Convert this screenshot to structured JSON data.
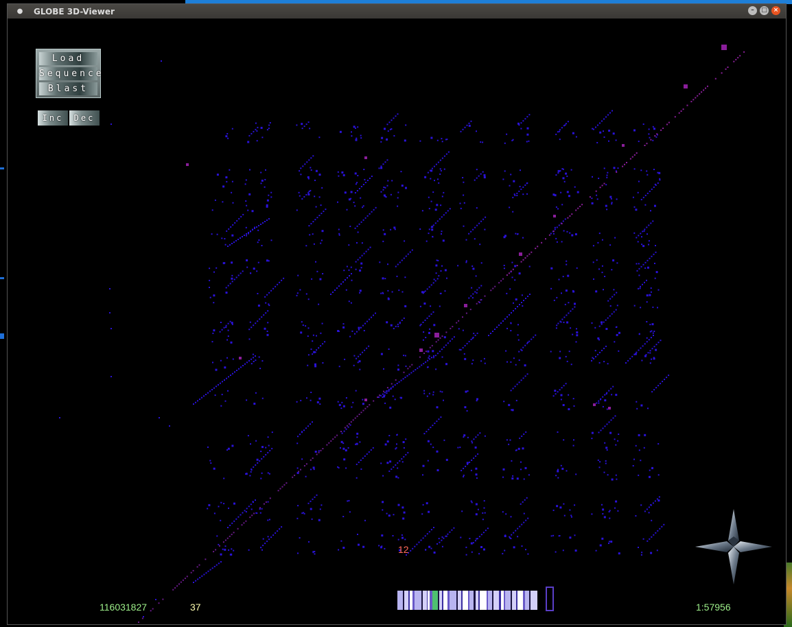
{
  "window": {
    "title": "GLOBE 3D-Viewer"
  },
  "menu": {
    "load_label": "Load",
    "sequence_label": "Sequence",
    "blast_label": "Blast"
  },
  "zoom": {
    "inc_label": "Inc",
    "dec_label": "Dec"
  },
  "status": {
    "position": "116031827",
    "count": "37",
    "marker": "12",
    "scale": "1:57956"
  },
  "colors": {
    "dot": "#2a12d8",
    "diagonal": "#6a1a8a",
    "diagonal_strong": "#8a1e9a",
    "position_text": "#9ef08a",
    "count_text": "#ffffb0",
    "marker_text": "#ff6a5a"
  },
  "icons": {
    "window_icon": "circle-icon",
    "compass": "compass-icon"
  }
}
